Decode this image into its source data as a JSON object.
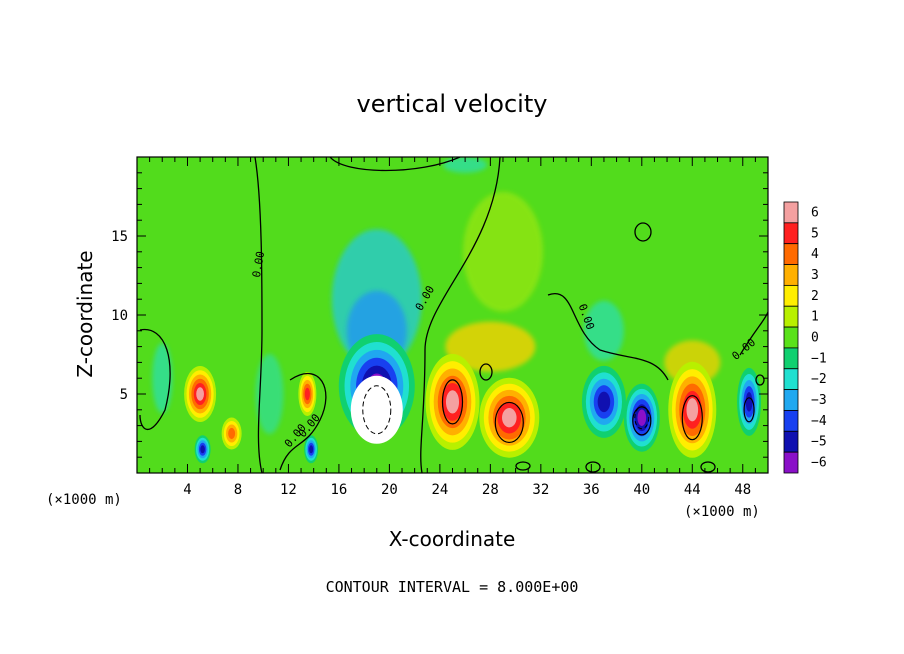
{
  "chart_data": {
    "type": "heatmap",
    "title": "vertical velocity",
    "xlabel": "X-coordinate",
    "ylabel": "Z-coordinate",
    "x_unit_label": "(×1000 m)",
    "x_unit_label_right": "(×1000 m)",
    "xlim": [
      0,
      50
    ],
    "ylim": [
      0,
      20
    ],
    "x_ticks": [
      4,
      8,
      12,
      16,
      20,
      24,
      28,
      32,
      36,
      40,
      44,
      48
    ],
    "y_ticks": [
      5,
      10,
      15
    ],
    "colorbar": {
      "levels": [
        6,
        5,
        4,
        3,
        2,
        1,
        0,
        -1,
        -2,
        -3,
        -4,
        -5,
        -6
      ],
      "labels": [
        "6",
        "5",
        "4",
        "3",
        "2",
        "1",
        "0",
        "−1",
        "−2",
        "−3",
        "−4",
        "−5",
        "−6"
      ],
      "colors": [
        "#f4a0a0",
        "#ff2020",
        "#ff6a00",
        "#ffb000",
        "#ffee00",
        "#b8f000",
        "#5ae21a",
        "#10d070",
        "#20e0d0",
        "#20a8f0",
        "#1840f0",
        "#1010b0",
        "#8a10c8"
      ]
    },
    "features": [
      {
        "type": "updraft",
        "x": 5,
        "z": 5,
        "value": 5.5
      },
      {
        "type": "downdraft",
        "x": 5.2,
        "z": 1.5,
        "value": -4.5
      },
      {
        "type": "updraft",
        "x": 7.5,
        "z": 2.5,
        "value": 4
      },
      {
        "type": "updraft",
        "x": 13.5,
        "z": 5,
        "value": 5
      },
      {
        "type": "downdraft",
        "x": 13.8,
        "z": 1.5,
        "value": -5
      },
      {
        "type": "downdraft",
        "x": 19,
        "z": 5.5,
        "value": -5.5
      },
      {
        "type": "core",
        "x": 19,
        "z": 4,
        "value": -7
      },
      {
        "type": "updraft",
        "x": 25,
        "z": 4.5,
        "value": 6
      },
      {
        "type": "updraft",
        "x": 29.5,
        "z": 3.5,
        "value": 6
      },
      {
        "type": "downdraft",
        "x": 37,
        "z": 4.5,
        "value": -5
      },
      {
        "type": "downdraft",
        "x": 40,
        "z": 3.5,
        "value": -5.5
      },
      {
        "type": "updraft",
        "x": 44,
        "z": 4,
        "value": 6
      },
      {
        "type": "downdraft",
        "x": 48.5,
        "z": 4.5,
        "value": -5
      }
    ],
    "contour_label": "0.00"
  },
  "footer": {
    "contour_interval": "CONTOUR INTERVAL = 8.000E+00"
  }
}
